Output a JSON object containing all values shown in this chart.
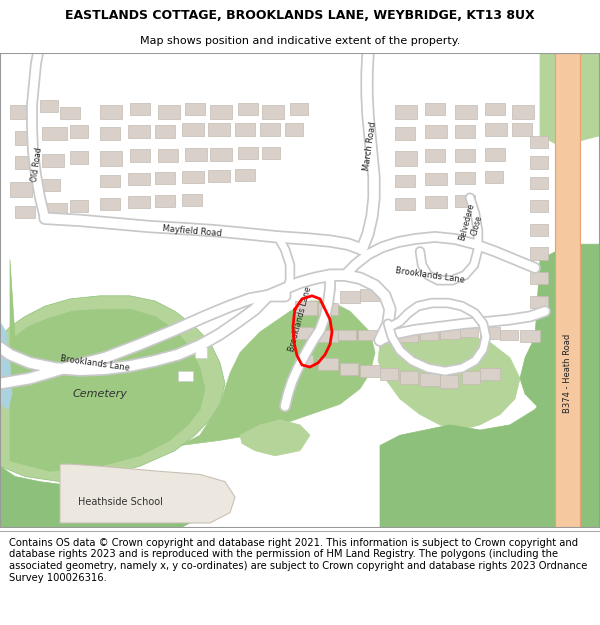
{
  "title_line1": "EASTLANDS COTTAGE, BROOKLANDS LANE, WEYBRIDGE, KT13 8UX",
  "title_line2": "Map shows position and indicative extent of the property.",
  "footer_text": "Contains OS data © Crown copyright and database right 2021. This information is subject to Crown copyright and database rights 2023 and is reproduced with the permission of HM Land Registry. The polygons (including the associated geometry, namely x, y co-ordinates) are subject to Crown copyright and database rights 2023 Ordnance Survey 100026316.",
  "title_fontsize": 9.0,
  "subtitle_fontsize": 8.0,
  "footer_fontsize": 7.2,
  "bg_color": "#ffffff",
  "map_bg": "#f2efe9",
  "green_dark": "#8dc07a",
  "green_mid": "#9dc982",
  "green_light": "#b5d49a",
  "road_color": "#ffffff",
  "building_color": "#d9d0c9",
  "building_stroke": "#c4bbb3",
  "water_color": "#aad3df",
  "highlight_road": "#f5c8a0",
  "highlight_road_stroke": "#e8a070",
  "plot_color": "#ff0000",
  "map_border": "#aaaaaa",
  "road_casing": "#c8c8c8"
}
